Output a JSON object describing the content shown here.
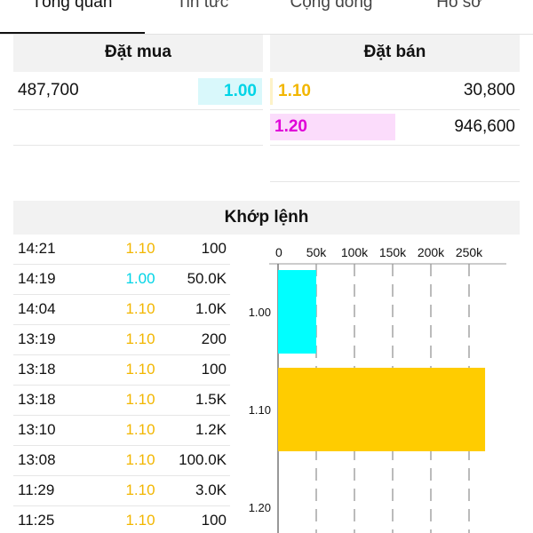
{
  "tabs": [
    {
      "label": "Tổng quan",
      "active": true
    },
    {
      "label": "Tin tức",
      "active": false
    },
    {
      "label": "Cộng đồng",
      "active": false
    },
    {
      "label": "Hồ sơ",
      "active": false
    }
  ],
  "order_book": {
    "buy_title": "Đặt mua",
    "sell_title": "Đặt bán",
    "buy": [
      {
        "volume": "487,700",
        "price": "1.00"
      }
    ],
    "sell": [
      {
        "price": "1.10",
        "volume": "30,800"
      },
      {
        "price": "1.20",
        "volume": "946,600"
      }
    ]
  },
  "matched": {
    "title": "Khớp lệnh",
    "trades": [
      {
        "time": "14:21",
        "price": "1.10",
        "volume": "100"
      },
      {
        "time": "14:19",
        "price": "1.00",
        "volume": "50.0K"
      },
      {
        "time": "14:04",
        "price": "1.10",
        "volume": "1.0K"
      },
      {
        "time": "13:19",
        "price": "1.10",
        "volume": "200"
      },
      {
        "time": "13:18",
        "price": "1.10",
        "volume": "100"
      },
      {
        "time": "13:18",
        "price": "1.10",
        "volume": "1.5K"
      },
      {
        "time": "13:10",
        "price": "1.10",
        "volume": "1.2K"
      },
      {
        "time": "13:08",
        "price": "1.10",
        "volume": "100.0K"
      },
      {
        "time": "11:29",
        "price": "1.10",
        "volume": "3.0K"
      },
      {
        "time": "11:25",
        "price": "1.10",
        "volume": "100"
      }
    ]
  },
  "colors": {
    "cyan": "#00d4e6",
    "cyan_bg": "#d9f8fb",
    "yellow": "#f2b600",
    "magenta": "#e000d8",
    "magenta_bg": "#fbdcfb",
    "bar_cyan": "#00ffff",
    "bar_yellow": "#ffcc00"
  },
  "chart_data": {
    "type": "bar",
    "orientation": "horizontal",
    "categories": [
      "1.00",
      "1.10",
      "1.20"
    ],
    "values": [
      50000,
      271000,
      0
    ],
    "bar_colors": [
      "#00ffff",
      "#ffcc00",
      "#ffcc00"
    ],
    "xticks": [
      "0",
      "50k",
      "100k",
      "150k",
      "200k",
      "250k"
    ],
    "xlim": [
      0,
      300000
    ],
    "grid": "vertical dashed",
    "axis_position": "top"
  }
}
